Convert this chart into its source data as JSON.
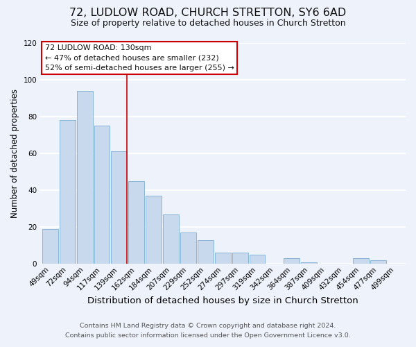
{
  "title": "72, LUDLOW ROAD, CHURCH STRETTON, SY6 6AD",
  "subtitle": "Size of property relative to detached houses in Church Stretton",
  "xlabel": "Distribution of detached houses by size in Church Stretton",
  "ylabel": "Number of detached properties",
  "bar_color": "#c8d9ee",
  "bar_edge_color": "#7aadd4",
  "categories": [
    "49sqm",
    "72sqm",
    "94sqm",
    "117sqm",
    "139sqm",
    "162sqm",
    "184sqm",
    "207sqm",
    "229sqm",
    "252sqm",
    "274sqm",
    "297sqm",
    "319sqm",
    "342sqm",
    "364sqm",
    "387sqm",
    "409sqm",
    "432sqm",
    "454sqm",
    "477sqm",
    "499sqm"
  ],
  "values": [
    19,
    78,
    94,
    75,
    61,
    45,
    37,
    27,
    17,
    13,
    6,
    6,
    5,
    0,
    3,
    1,
    0,
    0,
    3,
    2,
    0
  ],
  "ylim": [
    0,
    120
  ],
  "yticks": [
    0,
    20,
    40,
    60,
    80,
    100,
    120
  ],
  "annotation_title": "72 LUDLOW ROAD: 130sqm",
  "annotation_line1": "← 47% of detached houses are smaller (232)",
  "annotation_line2": "52% of semi-detached houses are larger (255) →",
  "annotation_box_color": "#ffffff",
  "annotation_box_edge_color": "#cc0000",
  "property_line_color": "#cc0000",
  "property_bar_index": 4,
  "footer_line1": "Contains HM Land Registry data © Crown copyright and database right 2024.",
  "footer_line2": "Contains public sector information licensed under the Open Government Licence v3.0.",
  "background_color": "#edf2fb",
  "grid_color": "#ffffff",
  "title_fontsize": 11.5,
  "subtitle_fontsize": 9,
  "xlabel_fontsize": 9.5,
  "ylabel_fontsize": 8.5,
  "tick_fontsize": 7.5,
  "footer_fontsize": 6.8
}
